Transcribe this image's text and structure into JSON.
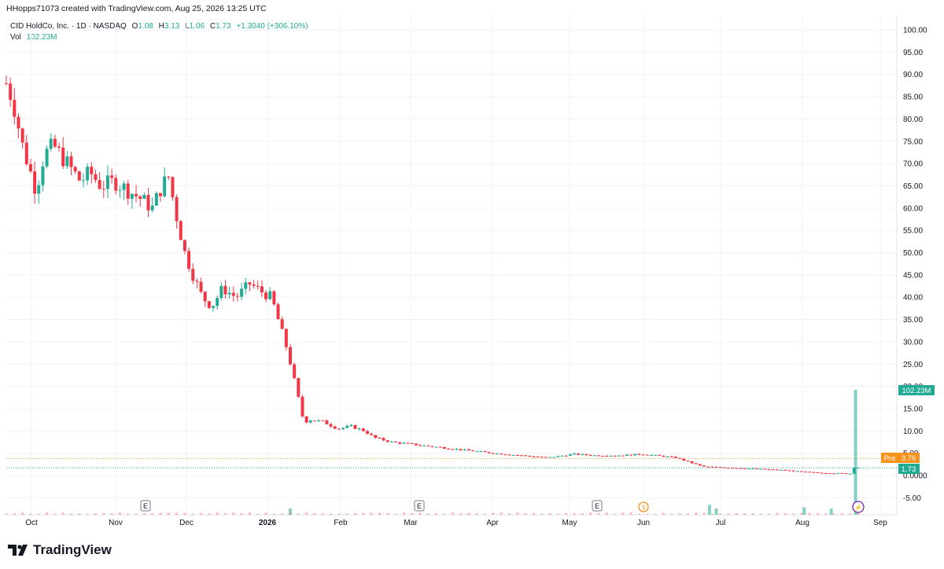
{
  "header": {
    "attribution": "HHopps71073 created with TradingView.com, Aug 25, 2026 13:25 UTC"
  },
  "legend": {
    "symbol": "CID HoldCo, Inc. · 1D · NASDAQ",
    "open_label": "O",
    "open": "1.08",
    "high_label": "H",
    "high": "3.13",
    "low_label": "L",
    "low": "1.06",
    "close_label": "C",
    "close": "1.73",
    "change": "+1.3040 (+306.10%)",
    "vol_label": "Vol",
    "vol": "102.23M"
  },
  "colors": {
    "up": "#22ab94",
    "down": "#f23645",
    "grid": "#f0f3fa",
    "text": "#131722",
    "pre": "#f7931a"
  },
  "footer": {
    "brand": "TradingView",
    "logo_icon": "tradingview-logo-icon"
  },
  "badges": {
    "vol_label": "102.23M",
    "pre_label": "Pre",
    "pre_value": "3.76",
    "last_value": "1.73"
  },
  "chart_data": {
    "type": "candlestick",
    "y_ticks": [
      "100.00",
      "95.00",
      "90.00",
      "85.00",
      "80.00",
      "75.00",
      "70.00",
      "65.00",
      "60.00",
      "55.00",
      "50.00",
      "45.00",
      "40.00",
      "35.00",
      "30.00",
      "25.00",
      "20.00",
      "15.00",
      "10.00",
      "5.00",
      "0.0000",
      "-5.00"
    ],
    "ylim": [
      -7,
      102
    ],
    "x_labels": [
      "Oct",
      "Nov",
      "Dec",
      "2026",
      "Feb",
      "Mar",
      "Apr",
      "May",
      "Jun",
      "Jul",
      "Aug",
      "Sep"
    ],
    "event_markers": [
      "E",
      "E",
      "E",
      "S"
    ],
    "pre_market": 3.76,
    "last_close": 1.73,
    "series": [
      {
        "name": "price",
        "keypoints": [
          [
            0,
            88
          ],
          [
            5,
            84
          ],
          [
            12,
            74
          ],
          [
            18,
            68
          ],
          [
            22,
            64
          ],
          [
            28,
            72
          ],
          [
            35,
            74
          ],
          [
            45,
            70
          ],
          [
            55,
            66
          ],
          [
            62,
            68
          ],
          [
            70,
            65
          ],
          [
            80,
            66
          ],
          [
            90,
            64
          ],
          [
            100,
            62
          ],
          [
            108,
            60
          ],
          [
            115,
            65
          ],
          [
            120,
            67
          ],
          [
            126,
            58
          ],
          [
            132,
            50
          ],
          [
            138,
            45
          ],
          [
            145,
            40
          ],
          [
            152,
            38
          ],
          [
            160,
            42
          ],
          [
            170,
            40
          ],
          [
            180,
            43
          ],
          [
            190,
            41
          ],
          [
            196,
            40
          ],
          [
            202,
            34
          ],
          [
            208,
            28
          ],
          [
            214,
            20
          ],
          [
            220,
            12
          ],
          [
            225,
            12.5
          ],
          [
            235,
            12
          ],
          [
            245,
            10.5
          ],
          [
            255,
            11
          ],
          [
            265,
            10
          ],
          [
            272,
            8.5
          ],
          [
            285,
            7.5
          ],
          [
            300,
            7
          ],
          [
            315,
            6.5
          ],
          [
            330,
            6
          ],
          [
            345,
            5.5
          ],
          [
            360,
            5
          ],
          [
            380,
            4.5
          ],
          [
            400,
            4
          ],
          [
            420,
            4.8
          ],
          [
            435,
            4.5
          ],
          [
            455,
            4.5
          ],
          [
            470,
            4.8
          ],
          [
            480,
            4.5
          ],
          [
            495,
            4
          ],
          [
            505,
            3
          ],
          [
            515,
            2
          ],
          [
            530,
            1.8
          ],
          [
            545,
            1.6
          ],
          [
            560,
            1.4
          ],
          [
            575,
            1.2
          ],
          [
            585,
            0.9
          ],
          [
            600,
            0.6
          ],
          [
            615,
            0.5
          ],
          [
            625,
            0.4
          ],
          [
            630,
            1.73
          ]
        ]
      },
      {
        "name": "volume",
        "spikes": [
          [
            210,
            0.05
          ],
          [
            520,
            0.08
          ],
          [
            525,
            0.05
          ],
          [
            590,
            0.06
          ],
          [
            610,
            0.05
          ],
          [
            628,
            1.0
          ]
        ]
      }
    ]
  }
}
